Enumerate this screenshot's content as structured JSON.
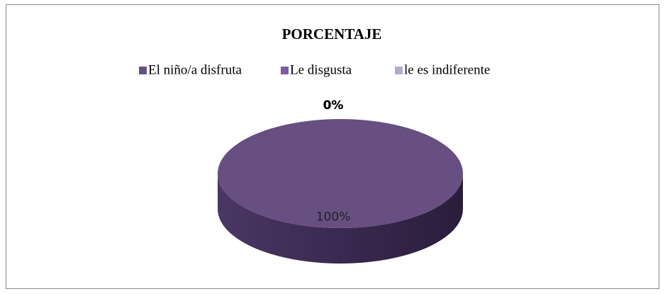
{
  "chart_data": {
    "type": "pie",
    "title": "PORCENTAJE",
    "categories": [
      "El niño/a disfruta",
      "Le disgusta",
      "le es indiferente"
    ],
    "values": [
      100,
      0,
      0
    ],
    "value_labels": [
      "100%",
      "0%",
      "0%"
    ],
    "colors": [
      "#674f82",
      "#7b5aa6",
      "#b7a8cc"
    ],
    "legend": "top"
  }
}
